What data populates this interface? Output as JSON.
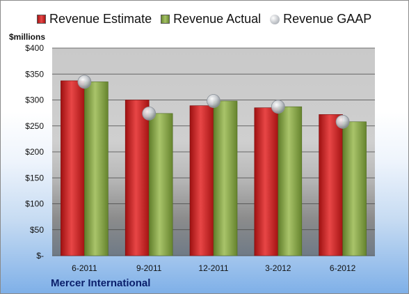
{
  "colors": {
    "estimate": "#d12a2a",
    "actual": "#8aa64a",
    "gaap": "#c8ccd2",
    "plot_bg": "#c8c8c8"
  },
  "company": "Mercer International",
  "chart_data": {
    "type": "bar",
    "title": "",
    "ylabel": "$millions",
    "xlabel": "",
    "categories": [
      "6-2011",
      "9-2011",
      "12-2011",
      "3-2012",
      "6-2012"
    ],
    "series": [
      {
        "name": "Revenue Estimate",
        "kind": "bar",
        "color": "#d12a2a",
        "values": [
          337,
          300,
          289,
          285,
          272
        ]
      },
      {
        "name": "Revenue Actual",
        "kind": "bar",
        "color": "#8aa64a",
        "values": [
          335,
          274,
          298,
          287,
          258
        ]
      },
      {
        "name": "Revenue GAAP",
        "kind": "marker",
        "color": "#c8ccd2",
        "values": [
          335,
          274,
          298,
          287,
          258
        ]
      }
    ],
    "ylim": [
      0,
      400
    ],
    "yticks": [
      0,
      50,
      100,
      150,
      200,
      250,
      300,
      350,
      400
    ],
    "ytick_labels": [
      "$-",
      "$50",
      "$100",
      "$150",
      "$200",
      "$250",
      "$300",
      "$350",
      "$400"
    ],
    "grid": true,
    "legend": "top"
  }
}
